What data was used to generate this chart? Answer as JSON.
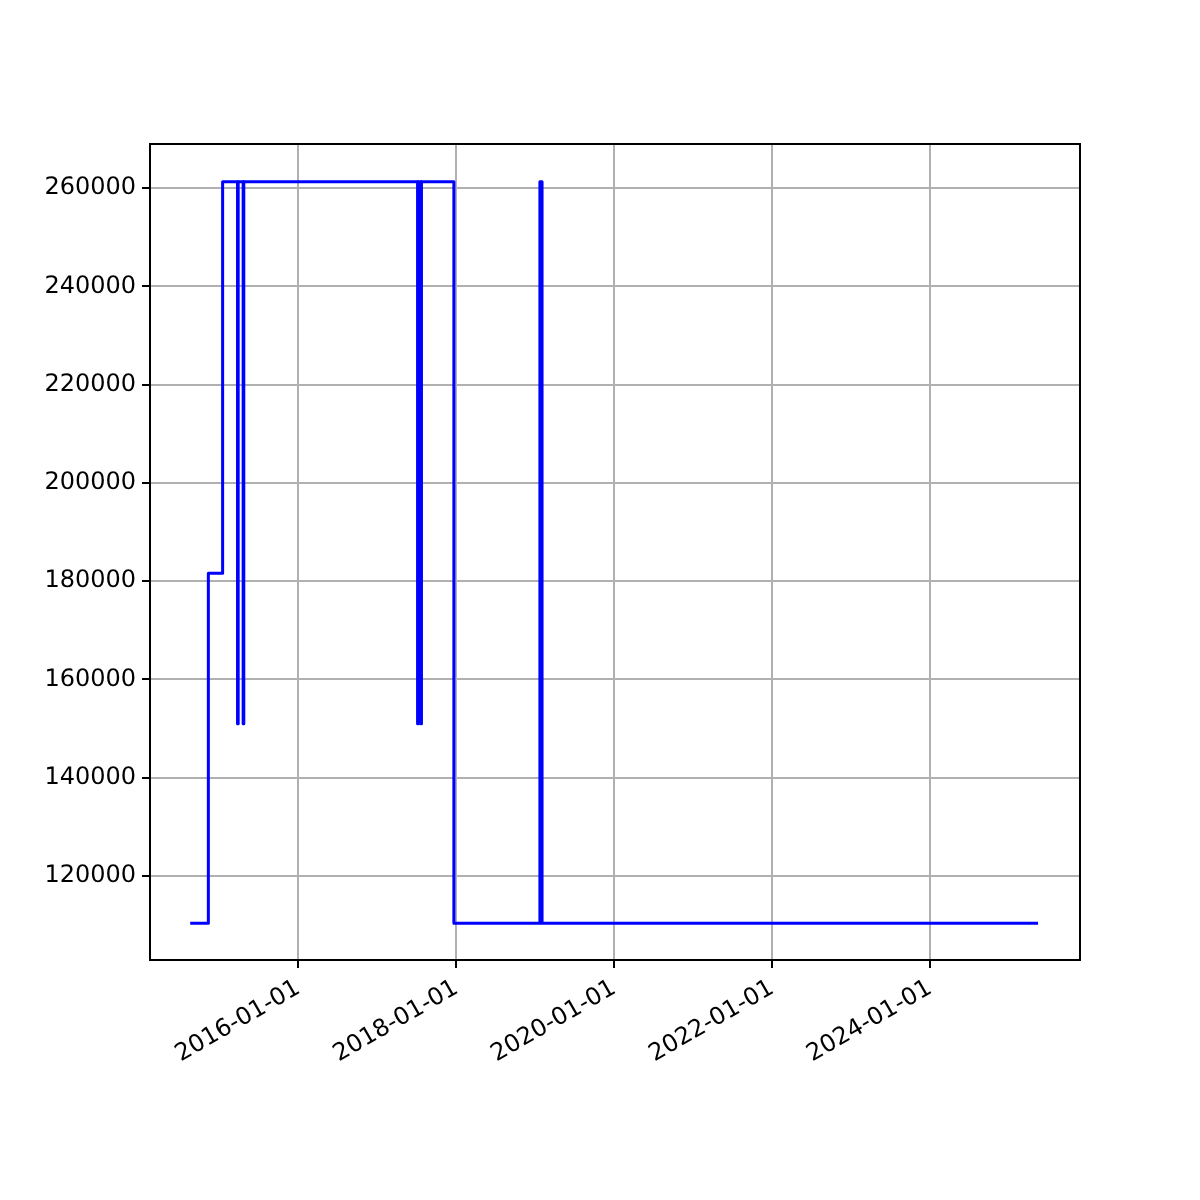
{
  "chart_data": {
    "type": "step",
    "x": [
      "2014-08-18",
      "2014-11-10",
      "2015-01-15",
      "2015-03-25",
      "2015-03-28",
      "2015-04-20",
      "2015-04-23",
      "2017-07-05",
      "2017-07-08",
      "2017-07-20",
      "2017-07-23",
      "2017-12-20",
      "2019-01-22",
      "2019-02-01",
      "2025-05-15"
    ],
    "series": [
      {
        "color": "#0000ff",
        "values": [
          110400,
          181600,
          261300,
          151000,
          261300,
          151000,
          261300,
          151000,
          261300,
          151000,
          261300,
          110400,
          261300,
          110400,
          110400
        ]
      }
    ],
    "xlim": [
      "2014-02-13",
      "2025-11-25"
    ],
    "xticks": [
      {
        "value": "2016-01-01",
        "label": "2016-01-01"
      },
      {
        "value": "2018-01-01",
        "label": "2018-01-01"
      },
      {
        "value": "2020-01-01",
        "label": "2020-01-01"
      },
      {
        "value": "2022-01-01",
        "label": "2022-01-01"
      },
      {
        "value": "2024-01-01",
        "label": "2024-01-01"
      }
    ],
    "ylim": [
      102900,
      269000
    ],
    "yticks": [
      120000,
      140000,
      160000,
      180000,
      200000,
      220000,
      240000,
      260000
    ],
    "grid": true
  }
}
